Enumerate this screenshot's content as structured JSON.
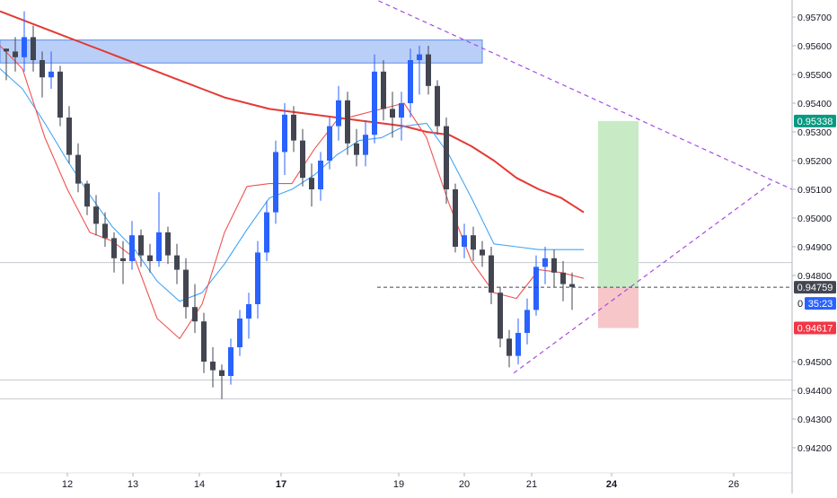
{
  "chart_data": {
    "type": "candlestick",
    "title": "",
    "xlabel": "",
    "ylabel": "",
    "ylim": [
      0.9415,
      0.9575
    ],
    "grid": false,
    "x_ticks": [
      {
        "label": "12",
        "bold": false
      },
      {
        "label": "13",
        "bold": false
      },
      {
        "label": "14",
        "bold": false
      },
      {
        "label": "17",
        "bold": true
      },
      {
        "label": "19",
        "bold": false
      },
      {
        "label": "20",
        "bold": false
      },
      {
        "label": "21",
        "bold": false
      },
      {
        "label": "24",
        "bold": true
      },
      {
        "label": "26",
        "bold": false
      }
    ],
    "y_ticks": [
      "0.95700",
      "0.95600",
      "0.95500",
      "0.95400",
      "0.95300",
      "0.95200",
      "0.95100",
      "0.95000",
      "0.94900",
      "0.94800",
      "0.94500",
      "0.94400",
      "0.94300",
      "0.94200"
    ],
    "price_labels": {
      "target": {
        "text": "0.95338",
        "value": 0.95338,
        "color": "#089981"
      },
      "current": {
        "text": "0.94759",
        "value": 0.94759,
        "color": "#434651"
      },
      "countdown": {
        "text": "35:23",
        "color": "#2962ff"
      },
      "stop": {
        "text": "0.94617",
        "value": 0.94617,
        "color": "#f23645"
      },
      "partial": {
        "text": "0"
      }
    },
    "supply_zone": {
      "y_top": 0.9562,
      "y_bottom": 0.9554,
      "color": "#5b8def"
    },
    "horizontal_levels": [
      0.94845,
      0.94436,
      0.9437
    ],
    "position": {
      "entry": 0.94759,
      "target": 0.95338,
      "stop": 0.94617,
      "profit_color": "#c8ebc6",
      "loss_color": "#f6c6c9"
    },
    "trendlines": {
      "upper": {
        "from": 0.9578,
        "to": 0.951,
        "color": "#a64ce3"
      },
      "lower": {
        "from": 0.9446,
        "to": 0.9512,
        "color": "#a64ce3"
      }
    },
    "series": [
      {
        "name": "",
        "color": "#e53935",
        "values": [
          0.9572,
          0.9569,
          0.9566,
          0.9563,
          0.956,
          0.9557,
          0.9554,
          0.9551,
          0.9548,
          0.9545,
          0.9542,
          0.954,
          0.9538,
          0.9537,
          0.9536,
          0.9535,
          0.9534,
          0.9533,
          0.9532,
          0.953,
          0.9529,
          0.9525,
          0.952,
          0.9514,
          0.951,
          0.9507,
          0.9502
        ]
      },
      {
        "name": "",
        "color": "#42a5f5",
        "values": [
          0.9552,
          0.9545,
          0.9533,
          0.952,
          0.9508,
          0.9497,
          0.9489,
          0.9478,
          0.9471,
          0.9474,
          0.9484,
          0.9496,
          0.9507,
          0.951,
          0.9515,
          0.9522,
          0.9527,
          0.9528,
          0.9532,
          0.9533,
          0.9522,
          0.9507,
          0.9491,
          0.949,
          0.9489,
          0.9489,
          0.9489
        ]
      },
      {
        "name": "",
        "color": "#ef5350",
        "values": [
          0.956,
          0.9552,
          0.9528,
          0.951,
          0.9495,
          0.9492,
          0.9486,
          0.9465,
          0.9458,
          0.947,
          0.9495,
          0.9511,
          0.9512,
          0.9512,
          0.9524,
          0.9534,
          0.9536,
          0.9538,
          0.954,
          0.9528,
          0.9505,
          0.9485,
          0.9474,
          0.9472,
          0.9482,
          0.9481,
          0.9479
        ]
      }
    ],
    "candles": [
      [
        0.9559,
        0.9559,
        0.9548,
        0.9558
      ],
      [
        0.9558,
        0.9563,
        0.9551,
        0.9556
      ],
      [
        0.9556,
        0.9572,
        0.9551,
        0.9563
      ],
      [
        0.9563,
        0.9567,
        0.9551,
        0.9555
      ],
      [
        0.9555,
        0.9558,
        0.9542,
        0.9549
      ],
      [
        0.9549,
        0.9558,
        0.9545,
        0.9551
      ],
      [
        0.9551,
        0.9553,
        0.9532,
        0.9535
      ],
      [
        0.9535,
        0.9539,
        0.9519,
        0.9522
      ],
      [
        0.9522,
        0.9526,
        0.9509,
        0.9512
      ],
      [
        0.9512,
        0.9513,
        0.9501,
        0.9504
      ],
      [
        0.9504,
        0.9508,
        0.9494,
        0.9498
      ],
      [
        0.9498,
        0.9502,
        0.949,
        0.9493
      ],
      [
        0.9493,
        0.9495,
        0.9481,
        0.9486
      ],
      [
        0.9486,
        0.9492,
        0.9477,
        0.9485
      ],
      [
        0.9485,
        0.9499,
        0.9482,
        0.9494
      ],
      [
        0.9494,
        0.9496,
        0.9483,
        0.9487
      ],
      [
        0.9487,
        0.9491,
        0.9481,
        0.9485
      ],
      [
        0.9485,
        0.9509,
        0.9483,
        0.9495
      ],
      [
        0.9495,
        0.9497,
        0.9484,
        0.9487
      ],
      [
        0.9487,
        0.9491,
        0.9477,
        0.9482
      ],
      [
        0.9482,
        0.9486,
        0.9465,
        0.9469
      ],
      [
        0.9469,
        0.9477,
        0.946,
        0.9464
      ],
      [
        0.9464,
        0.9467,
        0.9446,
        0.945
      ],
      [
        0.945,
        0.9455,
        0.9441,
        0.9447
      ],
      [
        0.9447,
        0.9449,
        0.9437,
        0.9445
      ],
      [
        0.9445,
        0.9458,
        0.9442,
        0.9455
      ],
      [
        0.9455,
        0.9468,
        0.9452,
        0.9465
      ],
      [
        0.9465,
        0.9474,
        0.9458,
        0.947
      ],
      [
        0.947,
        0.9492,
        0.9465,
        0.9488
      ],
      [
        0.9488,
        0.9506,
        0.9485,
        0.9502
      ],
      [
        0.9502,
        0.9527,
        0.9498,
        0.9523
      ],
      [
        0.9523,
        0.954,
        0.9515,
        0.9536
      ],
      [
        0.9536,
        0.9539,
        0.9523,
        0.9527
      ],
      [
        0.9527,
        0.9531,
        0.9511,
        0.9514
      ],
      [
        0.9514,
        0.9519,
        0.9504,
        0.951
      ],
      [
        0.951,
        0.9523,
        0.9506,
        0.952
      ],
      [
        0.952,
        0.9535,
        0.9517,
        0.9532
      ],
      [
        0.9532,
        0.9546,
        0.9527,
        0.9541
      ],
      [
        0.9541,
        0.9544,
        0.9522,
        0.9526
      ],
      [
        0.9526,
        0.9531,
        0.9518,
        0.9522
      ],
      [
        0.9522,
        0.9534,
        0.9518,
        0.9529
      ],
      [
        0.9529,
        0.9557,
        0.9526,
        0.9551
      ],
      [
        0.9551,
        0.9555,
        0.9534,
        0.9538
      ],
      [
        0.9538,
        0.9544,
        0.9528,
        0.9535
      ],
      [
        0.9535,
        0.9544,
        0.9527,
        0.954
      ],
      [
        0.954,
        0.9559,
        0.9535,
        0.9555
      ],
      [
        0.9555,
        0.956,
        0.9543,
        0.9557
      ],
      [
        0.9557,
        0.956,
        0.9543,
        0.9546
      ],
      [
        0.9546,
        0.9548,
        0.9529,
        0.9532
      ],
      [
        0.9532,
        0.9535,
        0.9505,
        0.951
      ],
      [
        0.951,
        0.9512,
        0.9488,
        0.949
      ],
      [
        0.949,
        0.9498,
        0.9486,
        0.9494
      ],
      [
        0.9494,
        0.9497,
        0.9485,
        0.9489
      ],
      [
        0.9489,
        0.9492,
        0.9483,
        0.9487
      ],
      [
        0.9487,
        0.949,
        0.947,
        0.9474
      ],
      [
        0.9474,
        0.9476,
        0.9455,
        0.9458
      ],
      [
        0.9458,
        0.9461,
        0.9448,
        0.9452
      ],
      [
        0.9452,
        0.9465,
        0.9449,
        0.946
      ],
      [
        0.946,
        0.9472,
        0.9456,
        0.9468
      ],
      [
        0.9468,
        0.9487,
        0.9466,
        0.9483
      ],
      [
        0.9483,
        0.949,
        0.9477,
        0.9486
      ],
      [
        0.9486,
        0.9489,
        0.9476,
        0.9481
      ],
      [
        0.9481,
        0.9485,
        0.9471,
        0.9477
      ],
      [
        0.9477,
        0.9481,
        0.9468,
        0.9476
      ]
    ]
  }
}
